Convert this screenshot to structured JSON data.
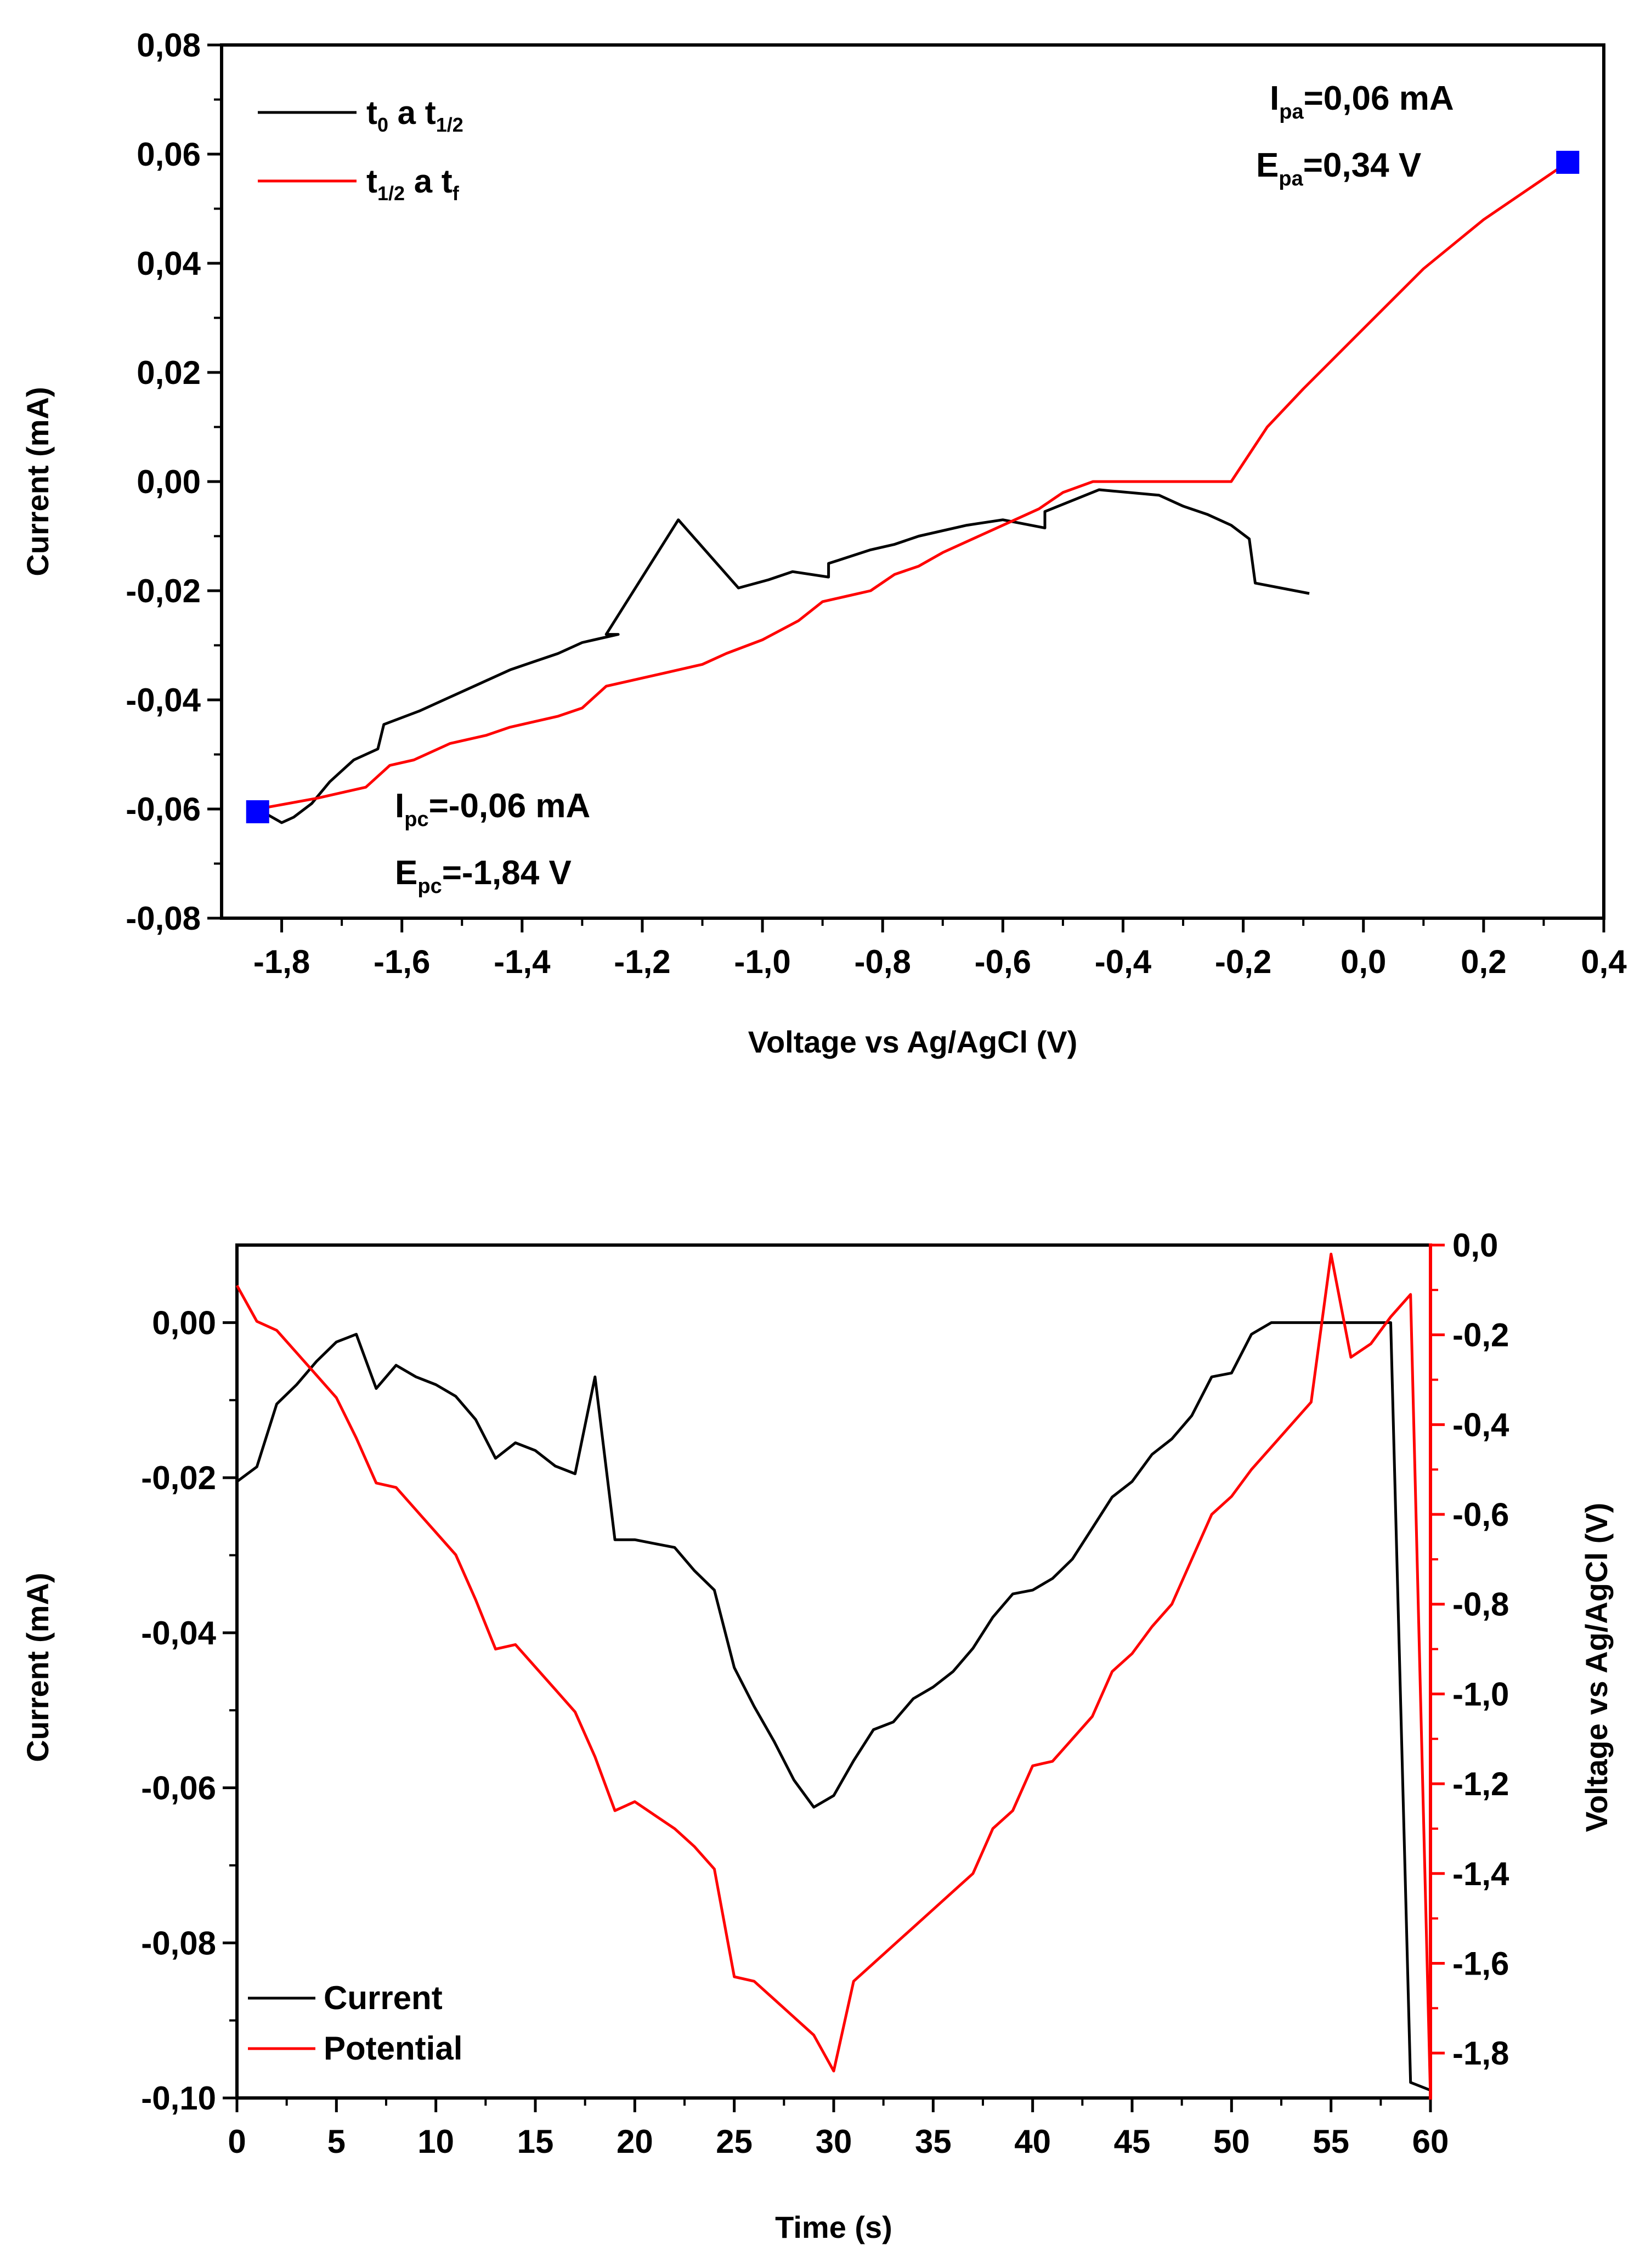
{
  "colors": {
    "black": "#000000",
    "red": "#ff0000",
    "marker": "#0000ff"
  },
  "chart_data": [
    {
      "type": "line",
      "xlabel": "Voltage vs Ag/AgCl (V)",
      "ylabel": "Current (mA)",
      "xlim": [
        -1.9,
        0.4
      ],
      "ylim": [
        -0.08,
        0.08
      ],
      "xticks": [
        -1.8,
        -1.6,
        -1.4,
        -1.2,
        -1.0,
        -0.8,
        -0.6,
        -0.4,
        -0.2,
        0.0,
        0.2,
        0.4
      ],
      "xtick_labels": [
        "-1,8",
        "-1,6",
        "-1,4",
        "-1,2",
        "-1,0",
        "-0,8",
        "-0,6",
        "-0,4",
        "-0,2",
        "0,0",
        "0,2",
        "0,4"
      ],
      "yticks": [
        -0.08,
        -0.06,
        -0.04,
        -0.02,
        0.0,
        0.02,
        0.04,
        0.06,
        0.08
      ],
      "ytick_labels": [
        "-0,08",
        "-0,06",
        "-0,04",
        "-0,02",
        "0,00",
        "0,02",
        "0,04",
        "0,06",
        "0,08"
      ],
      "legend": [
        {
          "base1": "t",
          "sub1": "0",
          "mid": " a ",
          "base2": "t",
          "sub2": "1/2",
          "color": "#000000"
        },
        {
          "base1": "t",
          "sub1": "1/2",
          "mid": " a ",
          "base2": "t",
          "sub2": "f",
          "color": "#ff0000"
        }
      ],
      "series": [
        {
          "name": "t0 a t1/2",
          "color": "#000000",
          "x": [
            -0.09,
            -0.18,
            -0.19,
            -0.22,
            -0.26,
            -0.3,
            -0.34,
            -0.44,
            -0.53,
            -0.53,
            -0.6,
            -0.66,
            -0.74,
            -0.78,
            -0.82,
            -0.89,
            -0.89,
            -0.95,
            -0.99,
            -1.04,
            -1.14,
            -1.26,
            -1.24,
            -1.28,
            -1.3,
            -1.34,
            -1.38,
            -1.42,
            -1.47,
            -1.52,
            -1.57,
            -1.63,
            -1.64,
            -1.68,
            -1.72,
            -1.75,
            -1.78,
            -1.8,
            -1.84
          ],
          "y": [
            -0.0205,
            -0.0186,
            -0.0105,
            -0.008,
            -0.006,
            -0.0045,
            -0.0025,
            -0.0015,
            -0.0055,
            -0.0085,
            -0.007,
            -0.008,
            -0.01,
            -0.0115,
            -0.0125,
            -0.015,
            -0.0175,
            -0.0165,
            -0.018,
            -0.0195,
            -0.007,
            -0.028,
            -0.028,
            -0.029,
            -0.0295,
            -0.0315,
            -0.033,
            -0.0345,
            -0.037,
            -0.0395,
            -0.042,
            -0.0445,
            -0.049,
            -0.051,
            -0.055,
            -0.059,
            -0.0615,
            -0.0625,
            -0.06
          ]
        },
        {
          "name": "t1/2 a tf",
          "color": "#ff0000",
          "x": [
            -1.84,
            -1.74,
            -1.66,
            -1.62,
            -1.58,
            -1.52,
            -1.46,
            -1.42,
            -1.38,
            -1.34,
            -1.3,
            -1.26,
            -1.22,
            -1.16,
            -1.1,
            -1.06,
            -1.0,
            -0.94,
            -0.9,
            -0.86,
            -0.82,
            -0.78,
            -0.74,
            -0.7,
            -0.64,
            -0.58,
            -0.54,
            -0.5,
            -0.45,
            -0.4,
            -0.34,
            -0.28,
            -0.22,
            -0.16,
            -0.1,
            0.0,
            0.1,
            0.2,
            0.34
          ],
          "y": [
            -0.06,
            -0.058,
            -0.056,
            -0.052,
            -0.051,
            -0.048,
            -0.0465,
            -0.045,
            -0.044,
            -0.043,
            -0.0415,
            -0.0375,
            -0.0365,
            -0.035,
            -0.0335,
            -0.0315,
            -0.029,
            -0.0255,
            -0.022,
            -0.021,
            -0.02,
            -0.017,
            -0.0155,
            -0.013,
            -0.01,
            -0.007,
            -0.005,
            -0.002,
            0.0,
            0.0,
            0.0,
            0.0,
            0.0,
            0.01,
            0.017,
            0.028,
            0.039,
            0.048,
            0.0585
          ]
        }
      ],
      "markers": [
        {
          "x": -1.84,
          "y": -0.0605
        },
        {
          "x": 0.34,
          "y": 0.0585
        }
      ],
      "annotations": [
        {
          "base": "I",
          "sub": "pa",
          "rest": "=0,06 mA"
        },
        {
          "base": "E",
          "sub": "pa",
          "rest": "=0,34 V"
        },
        {
          "base": "I",
          "sub": "pc",
          "rest": "=-0,06 mA"
        },
        {
          "base": "E",
          "sub": "pc",
          "rest": "=-1,84 V"
        }
      ]
    },
    {
      "type": "line",
      "xlabel": "Time (s)",
      "ylabel": "Current (mA)",
      "y2label": "Voltage vs Ag/AgCl (V)",
      "xlim": [
        0,
        60
      ],
      "ylim": [
        -0.1,
        0.01
      ],
      "y2lim": [
        -1.9,
        0.0
      ],
      "xticks": [
        0,
        5,
        10,
        15,
        20,
        25,
        30,
        35,
        40,
        45,
        50,
        55,
        60
      ],
      "xtick_labels": [
        "0",
        "5",
        "10",
        "15",
        "20",
        "25",
        "30",
        "35",
        "40",
        "45",
        "50",
        "55",
        "60"
      ],
      "yticks": [
        -0.1,
        -0.08,
        -0.06,
        -0.04,
        -0.02,
        0.0
      ],
      "ytick_labels": [
        "-0,10",
        "-0,08",
        "-0,06",
        "-0,04",
        "-0,02",
        "0,00"
      ],
      "y2ticks": [
        -1.8,
        -1.6,
        -1.4,
        -1.2,
        -1.0,
        -0.8,
        -0.6,
        -0.4,
        -0.2,
        0.0
      ],
      "y2tick_labels": [
        "-1,8",
        "-1,6",
        "-1,4",
        "-1,2",
        "-1,0",
        "-0,8",
        "-0,6",
        "-0,4",
        "-0,2",
        "0,0"
      ],
      "legend": [
        {
          "label": "Current",
          "color": "#000000"
        },
        {
          "label": "Potential",
          "color": "#ff0000"
        }
      ],
      "series": [
        {
          "name": "Current",
          "axis": "left",
          "color": "#000000",
          "x": [
            0,
            1,
            2,
            3,
            4,
            5,
            6,
            7,
            8,
            9,
            10,
            11,
            12,
            13,
            14,
            15,
            16,
            17,
            18,
            19,
            20,
            21,
            22,
            23,
            24,
            25,
            26,
            27,
            28,
            29,
            30,
            31,
            32,
            33,
            34,
            35,
            36,
            37,
            38,
            39,
            40,
            41,
            42,
            43,
            44,
            45,
            46,
            47,
            48,
            49,
            50,
            51,
            52,
            53,
            54,
            55,
            56,
            57,
            58,
            59,
            60
          ],
          "y": [
            -0.0205,
            -0.0186,
            -0.0105,
            -0.008,
            -0.005,
            -0.0025,
            -0.0015,
            -0.0085,
            -0.0055,
            -0.007,
            -0.008,
            -0.0095,
            -0.0125,
            -0.0175,
            -0.0155,
            -0.0165,
            -0.0185,
            -0.0195,
            -0.007,
            -0.028,
            -0.028,
            -0.0285,
            -0.029,
            -0.032,
            -0.0345,
            -0.0445,
            -0.0495,
            -0.054,
            -0.059,
            -0.0625,
            -0.061,
            -0.0565,
            -0.0525,
            -0.0515,
            -0.0485,
            -0.047,
            -0.045,
            -0.042,
            -0.038,
            -0.035,
            -0.0345,
            -0.033,
            -0.0305,
            -0.0265,
            -0.0225,
            -0.0205,
            -0.017,
            -0.015,
            -0.012,
            -0.007,
            -0.0065,
            -0.0015,
            0.0,
            0.0,
            0.0,
            0.0,
            0.0,
            0.0,
            0.0,
            -0.098,
            -0.099
          ]
        },
        {
          "name": "Potential",
          "axis": "right",
          "color": "#ff0000",
          "x": [
            0,
            1,
            2,
            3,
            4,
            5,
            6,
            7,
            8,
            9,
            10,
            11,
            12,
            13,
            14,
            15,
            16,
            17,
            18,
            19,
            20,
            21,
            22,
            23,
            24,
            25,
            26,
            27,
            28,
            29,
            30,
            31,
            32,
            33,
            34,
            35,
            36,
            37,
            38,
            39,
            40,
            41,
            42,
            43,
            44,
            45,
            46,
            47,
            48,
            49,
            50,
            51,
            52,
            53,
            54,
            55,
            56,
            57,
            58,
            59,
            60
          ],
          "y": [
            -0.09,
            -0.17,
            -0.19,
            -0.24,
            -0.29,
            -0.34,
            -0.43,
            -0.53,
            -0.54,
            -0.59,
            -0.64,
            -0.69,
            -0.79,
            -0.9,
            -0.89,
            -0.94,
            -0.99,
            -1.04,
            -1.14,
            -1.26,
            -1.24,
            -1.27,
            -1.3,
            -1.34,
            -1.39,
            -1.63,
            -1.64,
            -1.68,
            -1.72,
            -1.76,
            -1.84,
            -1.64,
            -1.6,
            -1.56,
            -1.52,
            -1.48,
            -1.44,
            -1.4,
            -1.3,
            -1.26,
            -1.16,
            -1.15,
            -1.1,
            -1.05,
            -0.95,
            -0.91,
            -0.85,
            -0.8,
            -0.7,
            -0.6,
            -0.56,
            -0.5,
            -0.45,
            -0.4,
            -0.35,
            -0.02,
            -0.25,
            -0.22,
            -0.16,
            -0.11,
            -1.9
          ]
        }
      ]
    }
  ]
}
